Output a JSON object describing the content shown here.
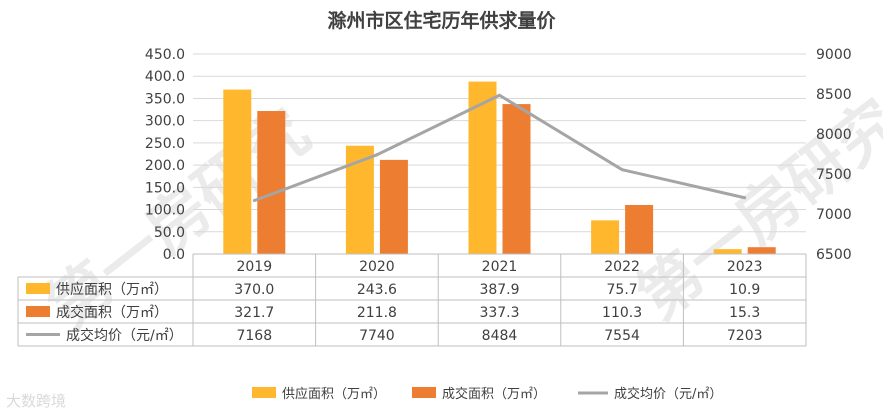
{
  "chart_data": {
    "type": "bar+line",
    "title": "滁州市区住宅历年供求量价",
    "categories": [
      "2019",
      "2020",
      "2021",
      "2022",
      "2023"
    ],
    "series": [
      {
        "name": "供应面积（万㎡）",
        "type": "bar",
        "axis": "left",
        "color": "#FFB82E",
        "values": [
          370.0,
          243.6,
          387.9,
          75.7,
          10.9
        ],
        "labels": [
          "370.0",
          "243.6",
          "387.9",
          "75.7",
          "10.9"
        ]
      },
      {
        "name": "成交面积（万㎡）",
        "type": "bar",
        "axis": "left",
        "color": "#ED7D31",
        "values": [
          321.7,
          211.8,
          337.3,
          110.3,
          15.3
        ],
        "labels": [
          "321.7",
          "211.8",
          "337.3",
          "110.3",
          "15.3"
        ]
      },
      {
        "name": "成交均价（元/㎡）",
        "type": "line",
        "axis": "right",
        "color": "#A5A5A5",
        "values": [
          7168,
          7740,
          8484,
          7554,
          7203
        ],
        "labels": [
          "7168",
          "7740",
          "8484",
          "7554",
          "7203"
        ]
      }
    ],
    "y_left": {
      "min": 0,
      "max": 450,
      "step": 50,
      "ticks": [
        "0.0",
        "50.0",
        "100.0",
        "150.0",
        "200.0",
        "250.0",
        "300.0",
        "350.0",
        "400.0",
        "450.0"
      ]
    },
    "y_right": {
      "min": 6500,
      "max": 9000,
      "step": 500,
      "ticks": [
        "6500",
        "7000",
        "7500",
        "8000",
        "8500",
        "9000"
      ]
    },
    "data_table": true,
    "legend_position": "bottom"
  },
  "watermark": "第一房研究",
  "corner_watermark": "大数跨境"
}
